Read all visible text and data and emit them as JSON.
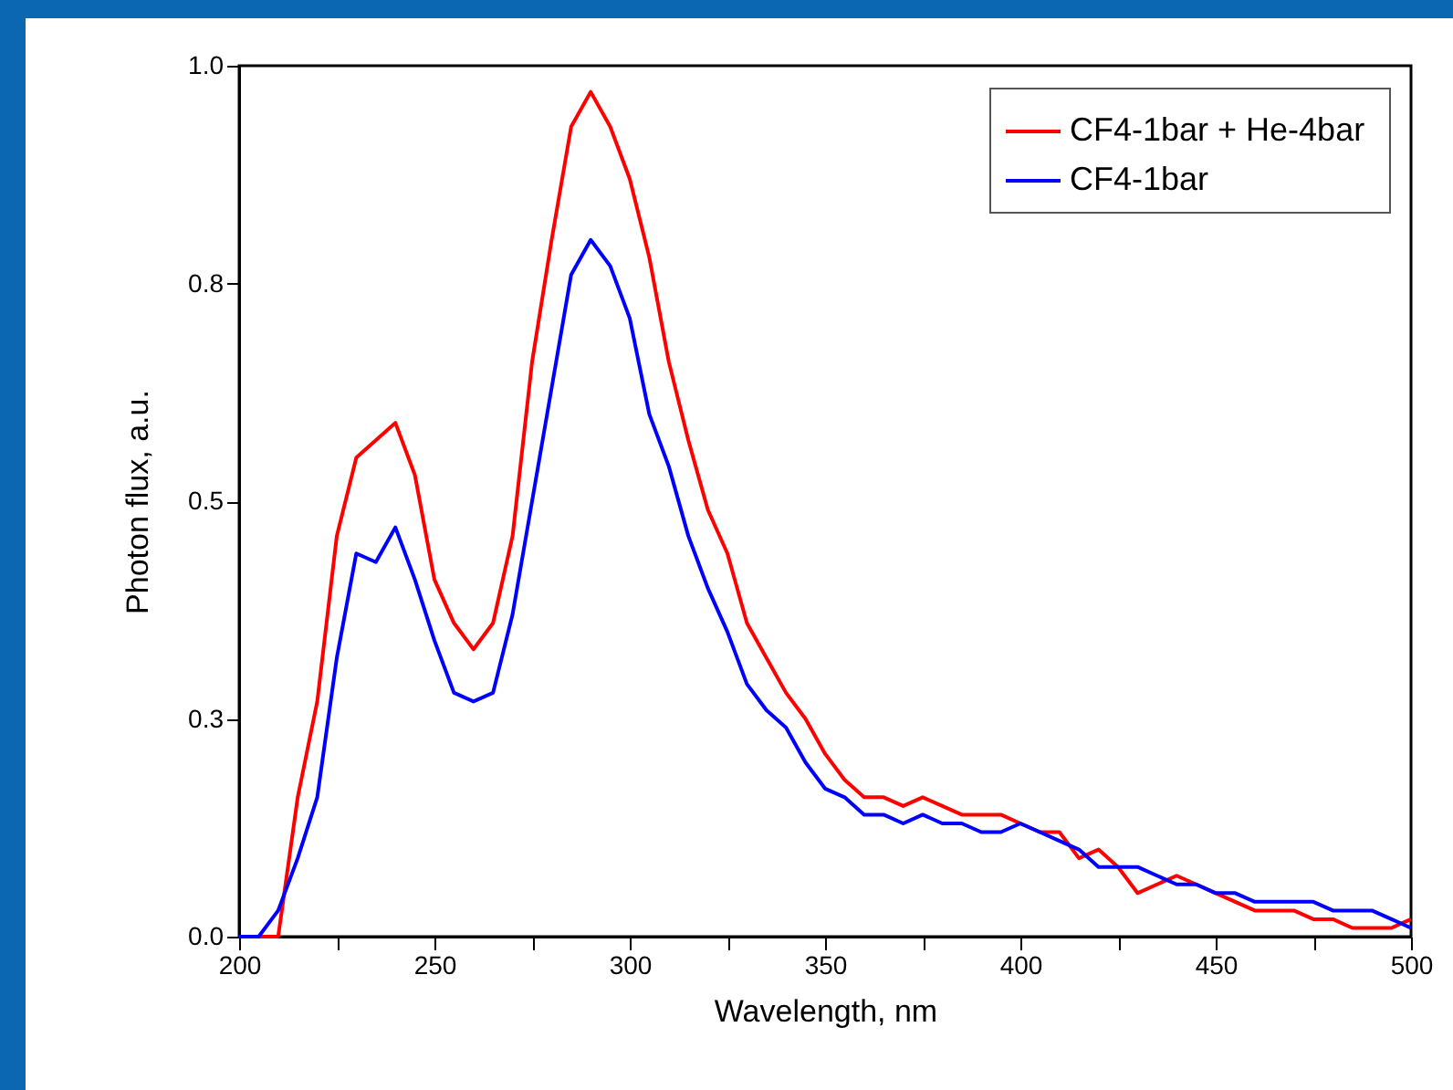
{
  "chart_data": {
    "type": "line",
    "xlabel": "Wavelength, nm",
    "ylabel": "Photon flux, a.u.",
    "x": [
      200,
      205,
      210,
      215,
      220,
      225,
      230,
      235,
      240,
      245,
      250,
      255,
      260,
      265,
      270,
      275,
      280,
      285,
      290,
      295,
      300,
      305,
      310,
      315,
      320,
      325,
      330,
      335,
      340,
      345,
      350,
      355,
      360,
      365,
      370,
      375,
      380,
      385,
      390,
      395,
      400,
      405,
      410,
      415,
      420,
      425,
      430,
      435,
      440,
      445,
      450,
      455,
      460,
      465,
      470,
      475,
      480,
      485,
      490,
      495,
      500
    ],
    "series": [
      {
        "name": "CF4-1bar  + He-4bar",
        "color": "#ff0000",
        "values": [
          0,
          0,
          0,
          0.16,
          0.27,
          0.46,
          0.55,
          0.57,
          0.59,
          0.53,
          0.41,
          0.36,
          0.33,
          0.36,
          0.46,
          0.66,
          0.8,
          0.93,
          0.97,
          0.93,
          0.87,
          0.78,
          0.66,
          0.57,
          0.49,
          0.44,
          0.36,
          0.32,
          0.28,
          0.25,
          0.21,
          0.18,
          0.16,
          0.16,
          0.15,
          0.16,
          0.15,
          0.14,
          0.14,
          0.14,
          0.13,
          0.12,
          0.12,
          0.09,
          0.1,
          0.08,
          0.05,
          0.06,
          0.07,
          0.06,
          0.05,
          0.04,
          0.03,
          0.03,
          0.03,
          0.02,
          0.02,
          0.01,
          0.01,
          0.01,
          0.02
        ]
      },
      {
        "name": "CF4-1bar",
        "color": "#0000ff",
        "values": [
          0,
          0,
          0.03,
          0.09,
          0.16,
          0.32,
          0.44,
          0.43,
          0.47,
          0.41,
          0.34,
          0.28,
          0.27,
          0.28,
          0.37,
          0.5,
          0.63,
          0.76,
          0.8,
          0.77,
          0.71,
          0.6,
          0.54,
          0.46,
          0.4,
          0.35,
          0.29,
          0.26,
          0.24,
          0.2,
          0.17,
          0.16,
          0.14,
          0.14,
          0.13,
          0.14,
          0.13,
          0.13,
          0.12,
          0.12,
          0.13,
          0.12,
          0.11,
          0.1,
          0.08,
          0.08,
          0.08,
          0.07,
          0.06,
          0.06,
          0.05,
          0.05,
          0.04,
          0.04,
          0.04,
          0.04,
          0.03,
          0.03,
          0.03,
          0.02,
          0.01
        ]
      }
    ],
    "xlim": [
      200,
      500
    ],
    "ylim": [
      0,
      1
    ],
    "xticks": [
      200,
      {
        "value": 225,
        "label": null
      },
      250,
      {
        "value": 275,
        "label": null
      },
      300,
      {
        "value": 325,
        "label": null
      },
      350,
      {
        "value": 375,
        "label": null
      },
      400,
      {
        "value": 425,
        "label": null
      },
      450,
      {
        "value": 475,
        "label": null
      },
      500
    ],
    "yticks": [
      {
        "value": 0,
        "label": "0.0"
      },
      {
        "value": 0.25,
        "label": "0.3"
      },
      {
        "value": 0.5,
        "label": "0.5"
      },
      {
        "value": 0.75,
        "label": "0.8"
      },
      {
        "value": 1,
        "label": "1.0"
      }
    ],
    "legend": "top right",
    "line_style": "solid"
  }
}
